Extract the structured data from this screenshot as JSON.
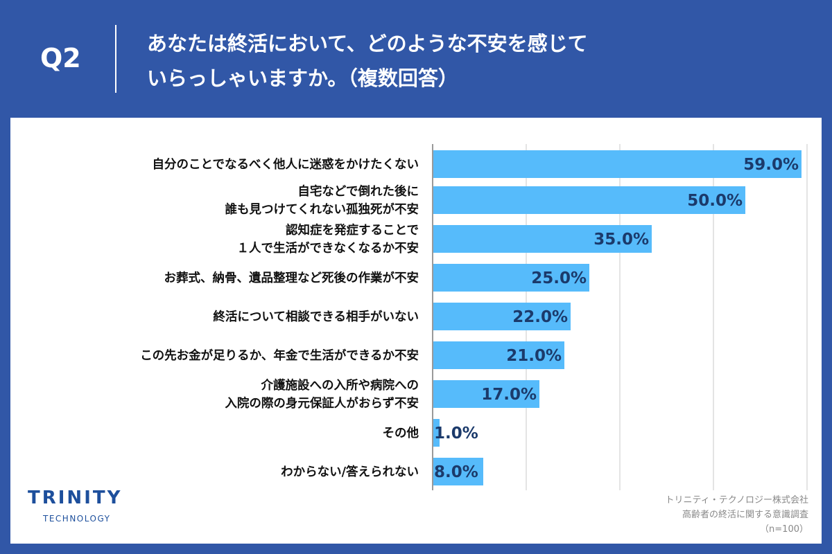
{
  "header": {
    "q": "Q2",
    "title": "あなたは終活において、どのような不安を感じて\nいらっしゃいますか。（複数回答）"
  },
  "chart_data": {
    "type": "bar",
    "orientation": "horizontal",
    "xlim": [
      0,
      60
    ],
    "grid": true,
    "categories": [
      "自分のことでなるべく他人に迷惑をかけたくない",
      "自宅などで倒れた後に\n誰も見つけてくれない孤独死が不安",
      "認知症を発症することで\n１人で生活ができなくなるか不安",
      "お葬式、納骨、遺品整理など死後の作業が不安",
      "終活について相談できる相手がいない",
      "この先お金が足りるか、年金で生活ができるか不安",
      "介護施設への入所や病院への\n入院の際の身元保証人がおらず不安",
      "その他",
      "わからない/答えられない"
    ],
    "values": [
      59.0,
      50.0,
      35.0,
      25.0,
      22.0,
      21.0,
      17.0,
      1.0,
      8.0
    ],
    "value_labels": [
      "59.0%",
      "50.0%",
      "35.0%",
      "25.0%",
      "22.0%",
      "21.0%",
      "17.0%",
      "1.0%",
      "8.0%"
    ],
    "bar_color": "#56bbfb"
  },
  "logo": {
    "main": "TRINITY",
    "sub": "TECHNOLOGY"
  },
  "source": {
    "company": "トリニティ・テクノロジー株式会社",
    "survey": "高齢者の終活に関する意識調査",
    "n": "（n=100）"
  }
}
